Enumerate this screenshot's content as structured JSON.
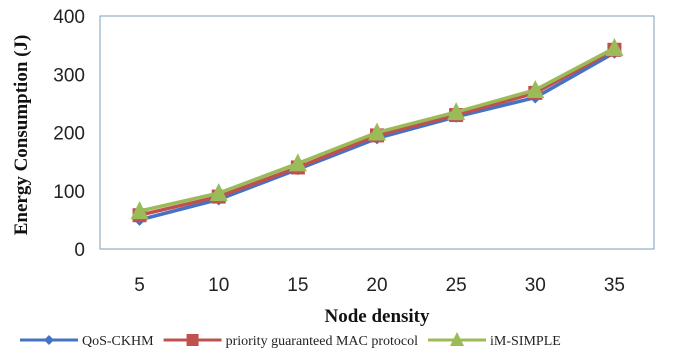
{
  "chart_data": {
    "type": "line",
    "title": "",
    "xlabel": "Node density",
    "ylabel": "Energy Consumption (J)",
    "categories": [
      "5",
      "10",
      "15",
      "20",
      "25",
      "30",
      "35"
    ],
    "ylim": [
      0,
      400
    ],
    "yticks": [
      "0",
      "100",
      "200",
      "300",
      "400"
    ],
    "grid": false,
    "legend_position": "bottom",
    "series": [
      {
        "name": "QoS-CKHM",
        "values": [
          50,
          85,
          137,
          190,
          227,
          260,
          337
        ],
        "color": "#4472C4",
        "marker": "diamond"
      },
      {
        "name": "priority guaranteed MAC protocol",
        "values": [
          58,
          90,
          140,
          195,
          230,
          268,
          342
        ],
        "color": "#C0504D",
        "marker": "square"
      },
      {
        "name": "iM-SIMPLE",
        "values": [
          65,
          96,
          147,
          200,
          235,
          273,
          345
        ],
        "color": "#9BBB59",
        "marker": "triangle"
      }
    ]
  }
}
